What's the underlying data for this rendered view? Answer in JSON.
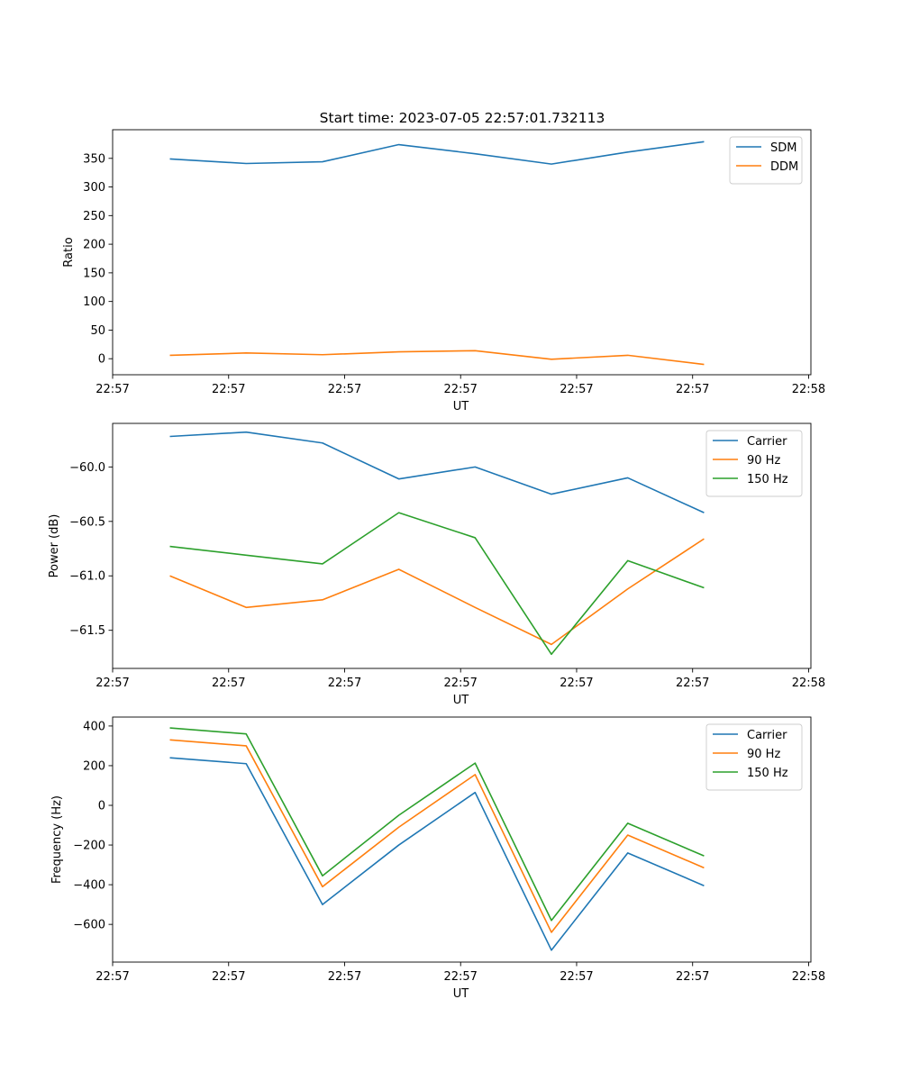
{
  "figure": {
    "title": "Start time: 2023-07-05 22:57:01.732113"
  },
  "chart_data": [
    {
      "type": "line",
      "title": "Start time: 2023-07-05 22:57:01.732113",
      "xlabel": "UT",
      "ylabel": "Ratio",
      "x": [
        0,
        1,
        2,
        3,
        4,
        5,
        6,
        7
      ],
      "xlim": [
        -0.75,
        8.4
      ],
      "x_ticks": [
        -0.75,
        0.77,
        2.29,
        3.81,
        5.33,
        6.85,
        8.37
      ],
      "x_tick_labels": [
        "22:57",
        "22:57",
        "22:57",
        "22:57",
        "22:57",
        "22:57",
        "22:58"
      ],
      "ylim": [
        -28,
        400
      ],
      "y_ticks": [
        0,
        50,
        100,
        150,
        200,
        250,
        300,
        350
      ],
      "y_tick_labels": [
        "0",
        "50",
        "100",
        "150",
        "200",
        "250",
        "300",
        "350"
      ],
      "legend_position": "top-right",
      "series": [
        {
          "name": "SDM",
          "color": "#1f77b4",
          "values": [
            349,
            341,
            344,
            374,
            358,
            340,
            361,
            379
          ]
        },
        {
          "name": "DDM",
          "color": "#ff7f0e",
          "values": [
            6,
            10,
            7,
            12,
            14,
            -1,
            6,
            -10
          ]
        }
      ]
    },
    {
      "type": "line",
      "title": "",
      "xlabel": "UT",
      "ylabel": "Power (dB)",
      "x": [
        0,
        1,
        2,
        3,
        4,
        5,
        6,
        7
      ],
      "xlim": [
        -0.75,
        8.4
      ],
      "x_ticks": [
        -0.75,
        0.77,
        2.29,
        3.81,
        5.33,
        6.85,
        8.37
      ],
      "x_tick_labels": [
        "22:57",
        "22:57",
        "22:57",
        "22:57",
        "22:57",
        "22:57",
        "22:58"
      ],
      "ylim": [
        -61.85,
        -59.6
      ],
      "y_ticks": [
        -61.5,
        -61.0,
        -60.5,
        -60.0
      ],
      "y_tick_labels": [
        "−61.5",
        "−61.0",
        "−60.5",
        "−60.0"
      ],
      "legend_position": "top-right",
      "series": [
        {
          "name": "Carrier",
          "color": "#1f77b4",
          "values": [
            -59.72,
            -59.68,
            -59.78,
            -60.11,
            -60.0,
            -60.25,
            -60.1,
            -60.42
          ]
        },
        {
          "name": "90 Hz",
          "color": "#ff7f0e",
          "values": [
            -61.0,
            -61.29,
            -61.22,
            -60.94,
            -61.29,
            -61.63,
            -61.12,
            -60.66
          ]
        },
        {
          "name": "150 Hz",
          "color": "#2ca02c",
          "values": [
            -60.73,
            -60.81,
            -60.89,
            -60.42,
            -60.65,
            -61.72,
            -60.86,
            -61.11
          ]
        }
      ]
    },
    {
      "type": "line",
      "title": "",
      "xlabel": "UT",
      "ylabel": "Frequency (Hz)",
      "x": [
        0,
        1,
        2,
        3,
        4,
        5,
        6,
        7
      ],
      "xlim": [
        -0.75,
        8.4
      ],
      "x_ticks": [
        -0.75,
        0.77,
        2.29,
        3.81,
        5.33,
        6.85,
        8.37
      ],
      "x_tick_labels": [
        "22:57",
        "22:57",
        "22:57",
        "22:57",
        "22:57",
        "22:57",
        "22:58"
      ],
      "ylim": [
        -790,
        445
      ],
      "y_ticks": [
        -600,
        -400,
        -200,
        0,
        200,
        400
      ],
      "y_tick_labels": [
        "−600",
        "−400",
        "−200",
        "0",
        "200",
        "400"
      ],
      "legend_position": "top-right",
      "series": [
        {
          "name": "Carrier",
          "color": "#1f77b4",
          "values": [
            240,
            210,
            -500,
            -200,
            65,
            -730,
            -240,
            -405
          ]
        },
        {
          "name": "90 Hz",
          "color": "#ff7f0e",
          "values": [
            330,
            300,
            -410,
            -110,
            155,
            -640,
            -150,
            -315
          ]
        },
        {
          "name": "150 Hz",
          "color": "#2ca02c",
          "values": [
            390,
            360,
            -355,
            -50,
            213,
            -580,
            -90,
            -255
          ]
        }
      ]
    }
  ]
}
